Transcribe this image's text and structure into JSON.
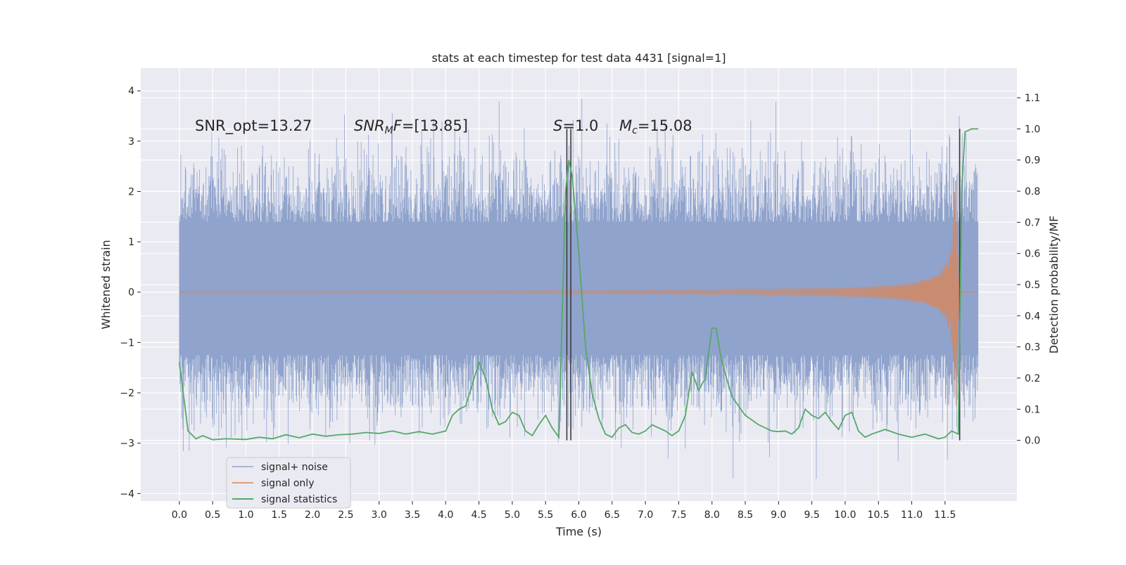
{
  "chart_data": {
    "type": "line",
    "title": "stats at each timestep for test data 4431 [signal=1]",
    "xlabel": "Time (s)",
    "ylabel_left": "Whitened strain",
    "ylabel_right": "Detection probability/MF",
    "xlim": [
      -0.58,
      12.58
    ],
    "ylim_left": [
      -4.15,
      4.45
    ],
    "ylim_right": [
      -0.195,
      1.195
    ],
    "xticks": [
      "0.0",
      "0.5",
      "1.0",
      "1.5",
      "2.0",
      "2.5",
      "3.0",
      "3.5",
      "4.0",
      "4.5",
      "5.0",
      "5.5",
      "6.0",
      "6.5",
      "7.0",
      "7.5",
      "8.0",
      "8.5",
      "9.0",
      "9.5",
      "10.0",
      "10.5",
      "11.0",
      "11.5"
    ],
    "yticks_left": [
      "−4",
      "−3",
      "−2",
      "−1",
      "0",
      "1",
      "2",
      "3",
      "4"
    ],
    "yticks_right": [
      "0.0",
      "0.1",
      "0.2",
      "0.3",
      "0.4",
      "0.5",
      "0.6",
      "0.7",
      "0.8",
      "0.9",
      "1.0",
      "1.1"
    ],
    "grid": true,
    "legend_position": "lower-left",
    "colors": {
      "signal_noise": "#8fa3cc",
      "signal_only": "#dd8452",
      "statistics": "#55a868",
      "markers": "#3a3a3a",
      "background": "#eaeaf2"
    },
    "annotations": [
      {
        "text": "SNR_opt=13.27"
      },
      {
        "parts": [
          {
            "t": "SNR",
            "italic": true
          },
          {
            "t": "M",
            "italic": true,
            "sub": true
          },
          {
            "t": "F",
            "italic": true
          },
          {
            "t": "=[13.85]",
            "italic": false
          }
        ]
      },
      {
        "parts": [
          {
            "t": "S",
            "italic": true
          },
          {
            "t": "=1.0",
            "italic": false
          }
        ]
      },
      {
        "parts": [
          {
            "t": "M",
            "italic": true
          },
          {
            "t": "c",
            "italic": true,
            "sub": true
          },
          {
            "t": "=15.08",
            "italic": false
          }
        ]
      }
    ],
    "markers": [
      {
        "x": 5.82,
        "y_from": 0.0,
        "y_to": 1.0
      },
      {
        "x": 5.88,
        "y_from": 0.0,
        "y_to": 1.0
      },
      {
        "x": 11.72,
        "y_from": 0.0,
        "y_to": 1.0
      }
    ],
    "series": [
      {
        "name": "signal+ noise",
        "kind": "noise-band",
        "x_range": [
          0.0,
          12.0
        ],
        "core_band": [
          -1.25,
          1.4
        ],
        "spike_range": [
          -3.75,
          4.1
        ]
      },
      {
        "name": "signal only",
        "kind": "chirp",
        "x_range": [
          0.0,
          12.0
        ],
        "coalescence_time": 11.68,
        "peak_amplitude": 2.25
      },
      {
        "name": "signal statistics",
        "kind": "line",
        "axis": "right",
        "x": [
          0.0,
          0.13,
          0.25,
          0.35,
          0.5,
          0.7,
          1.0,
          1.2,
          1.4,
          1.6,
          1.8,
          2.0,
          2.2,
          2.4,
          2.6,
          2.8,
          3.0,
          3.2,
          3.4,
          3.6,
          3.8,
          4.0,
          4.1,
          4.2,
          4.3,
          4.4,
          4.5,
          4.6,
          4.7,
          4.8,
          4.9,
          5.0,
          5.1,
          5.2,
          5.3,
          5.4,
          5.5,
          5.6,
          5.7,
          5.8,
          5.85,
          5.9,
          6.0,
          6.1,
          6.2,
          6.3,
          6.4,
          6.5,
          6.6,
          6.7,
          6.8,
          6.9,
          7.0,
          7.1,
          7.2,
          7.3,
          7.4,
          7.5,
          7.6,
          7.7,
          7.8,
          7.9,
          8.0,
          8.06,
          8.15,
          8.3,
          8.5,
          8.7,
          8.9,
          9.0,
          9.1,
          9.2,
          9.3,
          9.4,
          9.5,
          9.6,
          9.7,
          9.8,
          9.9,
          10.0,
          10.1,
          10.2,
          10.3,
          10.4,
          10.6,
          10.8,
          11.0,
          11.2,
          11.4,
          11.5,
          11.6,
          11.7,
          11.75,
          11.8,
          11.9,
          12.0
        ],
        "y": [
          0.25,
          0.03,
          0.005,
          0.015,
          0.002,
          0.005,
          0.003,
          0.01,
          0.005,
          0.018,
          0.008,
          0.02,
          0.013,
          0.018,
          0.02,
          0.025,
          0.022,
          0.03,
          0.02,
          0.028,
          0.02,
          0.03,
          0.08,
          0.1,
          0.11,
          0.18,
          0.25,
          0.2,
          0.1,
          0.05,
          0.06,
          0.09,
          0.08,
          0.03,
          0.015,
          0.05,
          0.08,
          0.04,
          0.01,
          0.8,
          0.9,
          0.85,
          0.6,
          0.3,
          0.15,
          0.07,
          0.02,
          0.01,
          0.04,
          0.05,
          0.025,
          0.02,
          0.03,
          0.05,
          0.04,
          0.03,
          0.015,
          0.03,
          0.08,
          0.22,
          0.16,
          0.2,
          0.36,
          0.36,
          0.25,
          0.14,
          0.08,
          0.05,
          0.03,
          0.028,
          0.03,
          0.02,
          0.04,
          0.1,
          0.08,
          0.07,
          0.09,
          0.06,
          0.035,
          0.08,
          0.09,
          0.03,
          0.01,
          0.02,
          0.035,
          0.02,
          0.01,
          0.02,
          0.005,
          0.01,
          0.03,
          0.02,
          0.8,
          0.99,
          1.0,
          1.0
        ]
      }
    ]
  }
}
